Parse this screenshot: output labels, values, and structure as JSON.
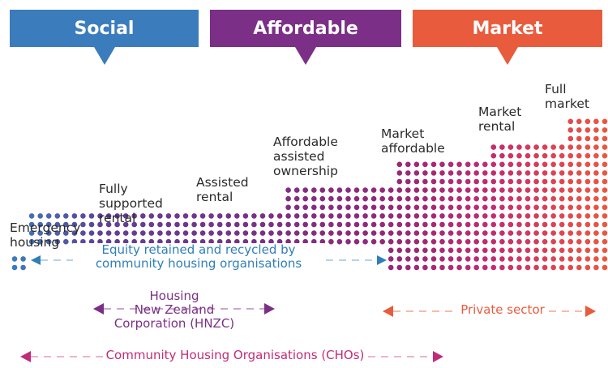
{
  "banners": {
    "social": "Social",
    "affordable": "Affordable",
    "market": "Market"
  },
  "categories": [
    {
      "line1": "Emergency",
      "line2": "housing"
    },
    {
      "line1": "Fully",
      "line2": "supported",
      "line3": "rental"
    },
    {
      "line1": "Assisted",
      "line2": "rental"
    },
    {
      "line1": "Affordable",
      "line2": "assisted",
      "line3": "ownership"
    },
    {
      "line1": "Market",
      "line2": "affordable"
    },
    {
      "line1": "Market",
      "line2": "rental"
    },
    {
      "line1": "Full",
      "line2": "market"
    }
  ],
  "annotations": {
    "equity_line1": "Equity retained and recycled by",
    "equity_line2": "community housing organisations",
    "hnzc_line1": "Housing",
    "hnzc_line2": "New Zealand",
    "hnzc_line3": "Corporation (HNZC)",
    "private": "Private sector",
    "cho": "Community Housing Organisations (CHOs)"
  },
  "colors": {
    "social": "#3b7cbd",
    "affordable": "#7b2f86",
    "market": "#e85c3d",
    "equity": "#2f7fb7",
    "cho": "#c22b79"
  }
}
